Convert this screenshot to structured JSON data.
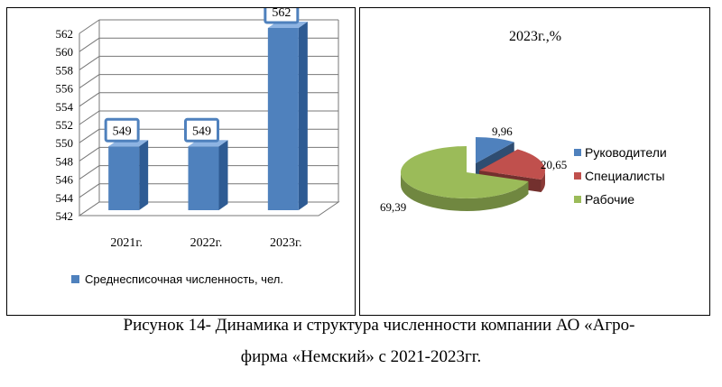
{
  "chart_data": [
    {
      "type": "bar",
      "title": "",
      "categories": [
        "2021г.",
        "2022г.",
        "2023г."
      ],
      "series": [
        {
          "name": "Среднесписочная численность, чел.",
          "values": [
            549,
            549,
            562
          ]
        }
      ],
      "data_labels": [
        "549",
        "549",
        "562"
      ],
      "y_ticks": [
        "542",
        "544",
        "546",
        "548",
        "550",
        "552",
        "554",
        "556",
        "558",
        "560",
        "562"
      ],
      "ylim": [
        542,
        562
      ],
      "grid": true,
      "legend_position": "bottom",
      "colors": {
        "bar": "#4f81bd",
        "bar_side": "#2e5b93",
        "bar_top": "#8db3e2",
        "label_border": "#4f81bd"
      }
    },
    {
      "type": "pie",
      "title": "2023г.,%",
      "labels": [
        "Руководители",
        "Специалисты",
        "Рабочие"
      ],
      "values": [
        9.96,
        20.65,
        69.39
      ],
      "data_labels": [
        "9,96",
        "20,65",
        "69,39"
      ],
      "legend_position": "right",
      "colors": [
        "#4f81bd",
        "#c0504d",
        "#9bbb59"
      ]
    }
  ],
  "caption": {
    "line1": "Рисунок 14- Динамика и структура численности  компании АО «Агро-",
    "line2": "фирма «Немский» с 2021-2023гг."
  }
}
